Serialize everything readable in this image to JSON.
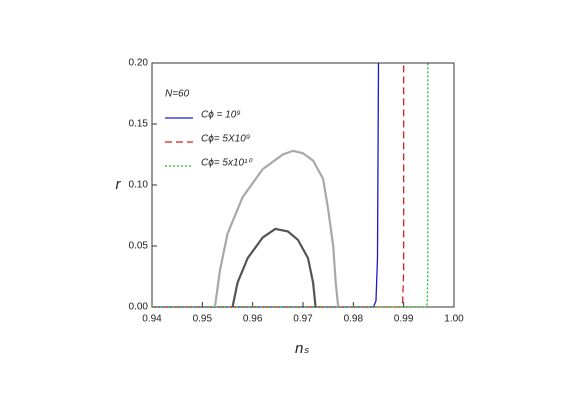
{
  "chart_data": {
    "type": "line",
    "legend_title": "N=60",
    "xlabel": "nₛ",
    "ylabel": "r",
    "xlim": [
      0.94,
      1.0
    ],
    "ylim": [
      0,
      0.2
    ],
    "xticks": [
      0.94,
      0.95,
      0.96,
      0.97,
      0.98,
      0.99,
      {
        "value": 1,
        "label": "1.00"
      }
    ],
    "yticks": [
      {
        "value": 0,
        "label": "0.00"
      },
      0.05,
      {
        "value": 0.1,
        "label": "0.10"
      },
      0.15,
      {
        "value": 0.2,
        "label": "0.20"
      }
    ],
    "legend": "upper left",
    "grid": false,
    "series": [
      {
        "name": "Cϕ = 10⁹",
        "color": "#1a1acc",
        "dash": "solid",
        "x": [
          0.94,
          0.984,
          0.9845,
          0.9848,
          0.985
        ],
        "values": [
          0,
          0,
          0.005,
          0.04,
          0.2
        ]
      },
      {
        "name": "Cϕ= 5X10⁹",
        "color": "#d42020",
        "dash": "dashed",
        "x": [
          0.94,
          0.9895,
          0.9898,
          0.99,
          0.99
        ],
        "values": [
          0,
          0,
          0.004,
          0.03,
          0.2
        ]
      },
      {
        "name": "Cϕ= 5x10¹⁰",
        "color": "#22bb22",
        "dash": "dotted",
        "x": [
          0.94,
          0.9945,
          0.9947,
          0.9948,
          0.9948
        ],
        "values": [
          0,
          0,
          0.004,
          0.03,
          0.2
        ]
      },
      {
        "color": "#a8a8a8",
        "dash": "solid",
        "x": [
          0.9525,
          0.9535,
          0.955,
          0.958,
          0.962,
          0.966,
          0.968,
          0.97,
          0.972,
          0.974,
          0.975,
          0.976,
          0.9765,
          0.977
        ],
        "values": [
          0,
          0.03,
          0.06,
          0.09,
          0.113,
          0.125,
          0.128,
          0.126,
          0.12,
          0.105,
          0.08,
          0.05,
          0.02,
          0
        ]
      },
      {
        "color": "#555555",
        "dash": "solid",
        "x": [
          0.956,
          0.957,
          0.959,
          0.962,
          0.9645,
          0.967,
          0.969,
          0.971,
          0.972,
          0.9725
        ],
        "values": [
          0,
          0.02,
          0.04,
          0.057,
          0.064,
          0.062,
          0.055,
          0.04,
          0.02,
          0
        ]
      }
    ]
  }
}
